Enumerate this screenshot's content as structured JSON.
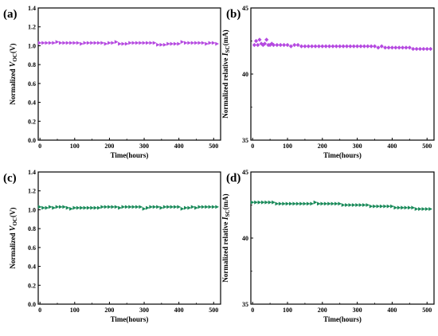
{
  "chart_data": [
    {
      "type": "scatter",
      "panel_label": "(a)",
      "xlabel": "Time(hours)",
      "ylabel": {
        "pre": "Normalized ",
        "var": "V",
        "sub": "OC",
        "post": "(V)"
      },
      "xlim": [
        -5,
        520
      ],
      "ylim": [
        0.0,
        1.4
      ],
      "xticks": [
        0,
        100,
        200,
        300,
        400,
        500
      ],
      "yticks": [
        "0.0",
        "0.2",
        "0.4",
        "0.6",
        "0.8",
        "1.0",
        "1.2",
        "1.4"
      ],
      "color": "#b54ae0",
      "marker": "triangle-right",
      "x": [
        0,
        10,
        20,
        30,
        40,
        50,
        60,
        70,
        80,
        90,
        100,
        110,
        120,
        130,
        140,
        150,
        160,
        170,
        180,
        190,
        200,
        210,
        220,
        230,
        240,
        250,
        260,
        270,
        280,
        290,
        300,
        310,
        320,
        330,
        340,
        350,
        360,
        370,
        380,
        390,
        400,
        410,
        420,
        430,
        440,
        450,
        460,
        470,
        480,
        490,
        500,
        510
      ],
      "y": [
        1.03,
        1.03,
        1.03,
        1.03,
        1.03,
        1.04,
        1.03,
        1.03,
        1.03,
        1.03,
        1.03,
        1.03,
        1.02,
        1.03,
        1.03,
        1.03,
        1.03,
        1.03,
        1.03,
        1.02,
        1.03,
        1.03,
        1.04,
        1.02,
        1.02,
        1.02,
        1.03,
        1.03,
        1.03,
        1.03,
        1.03,
        1.03,
        1.03,
        1.03,
        1.01,
        1.01,
        1.01,
        1.02,
        1.02,
        1.02,
        1.02,
        1.04,
        1.03,
        1.03,
        1.03,
        1.03,
        1.03,
        1.03,
        1.02,
        1.03,
        1.03,
        1.02
      ]
    },
    {
      "type": "scatter",
      "panel_label": "(b)",
      "xlabel": "Time(hours)",
      "ylabel": {
        "pre": "Normalized relative ",
        "var": "I",
        "sub": "SC",
        "post": "(mA)"
      },
      "xlim": [
        -5,
        520
      ],
      "ylim": [
        35,
        45
      ],
      "xticks": [
        0,
        100,
        200,
        300,
        400,
        500
      ],
      "yticks": [
        "35",
        "40",
        "45"
      ],
      "color": "#b54ae0",
      "marker": "diamond",
      "x": [
        5,
        10,
        15,
        20,
        25,
        30,
        35,
        40,
        45,
        50,
        55,
        60,
        70,
        80,
        90,
        100,
        110,
        120,
        130,
        140,
        150,
        160,
        170,
        180,
        190,
        200,
        210,
        220,
        230,
        240,
        250,
        260,
        270,
        280,
        290,
        300,
        310,
        320,
        330,
        340,
        350,
        360,
        370,
        380,
        390,
        400,
        410,
        420,
        430,
        440,
        450,
        460,
        470,
        480,
        490,
        500,
        510
      ],
      "y": [
        42.2,
        42.5,
        42.2,
        42.6,
        42.3,
        42.2,
        42.3,
        42.6,
        42.2,
        42.2,
        42.3,
        42.2,
        42.2,
        42.2,
        42.2,
        42.2,
        42.1,
        42.2,
        42.2,
        42.1,
        42.1,
        42.1,
        42.1,
        42.1,
        42.1,
        42.1,
        42.1,
        42.1,
        42.1,
        42.1,
        42.1,
        42.1,
        42.1,
        42.1,
        42.1,
        42.1,
        42.1,
        42.1,
        42.1,
        42.1,
        42.1,
        42.0,
        42.1,
        42.0,
        42.0,
        42.0,
        42.0,
        42.0,
        42.0,
        42.0,
        42.0,
        41.9,
        41.9,
        41.9,
        41.9,
        41.9,
        41.9
      ]
    },
    {
      "type": "scatter",
      "panel_label": "(c)",
      "xlabel": "Time(hours)",
      "ylabel": {
        "pre": "Normalized ",
        "var": "V",
        "sub": "OC",
        "post": "(V)"
      },
      "xlim": [
        -5,
        520
      ],
      "ylim": [
        0.0,
        1.4
      ],
      "xticks": [
        0,
        100,
        200,
        300,
        400,
        500
      ],
      "yticks": [
        "0.0",
        "0.2",
        "0.4",
        "0.6",
        "0.8",
        "1.0",
        "1.2",
        "1.4"
      ],
      "color": "#1a8a5a",
      "marker": "triangle-right",
      "x": [
        0,
        10,
        20,
        30,
        40,
        50,
        60,
        70,
        80,
        90,
        100,
        110,
        120,
        130,
        140,
        150,
        160,
        170,
        180,
        190,
        200,
        210,
        220,
        230,
        240,
        250,
        260,
        270,
        280,
        290,
        300,
        310,
        320,
        330,
        340,
        350,
        360,
        370,
        380,
        390,
        400,
        410,
        420,
        430,
        440,
        450,
        460,
        470,
        480,
        490,
        500,
        510
      ],
      "y": [
        1.03,
        1.02,
        1.02,
        1.03,
        1.02,
        1.03,
        1.03,
        1.03,
        1.02,
        1.01,
        1.02,
        1.02,
        1.02,
        1.02,
        1.02,
        1.02,
        1.02,
        1.02,
        1.03,
        1.03,
        1.03,
        1.03,
        1.03,
        1.02,
        1.03,
        1.03,
        1.03,
        1.03,
        1.03,
        1.03,
        1.01,
        1.02,
        1.03,
        1.03,
        1.03,
        1.02,
        1.03,
        1.03,
        1.03,
        1.03,
        1.03,
        1.01,
        1.02,
        1.02,
        1.03,
        1.02,
        1.03,
        1.03,
        1.03,
        1.03,
        1.03,
        1.03
      ]
    },
    {
      "type": "scatter",
      "panel_label": "(d)",
      "xlabel": "Time(hours)",
      "ylabel": {
        "pre": "Normalized relative ",
        "var": "I",
        "sub": "SC",
        "post": "(mA)"
      },
      "xlim": [
        -5,
        520
      ],
      "ylim": [
        35,
        45
      ],
      "xticks": [
        0,
        100,
        200,
        300,
        400,
        500
      ],
      "yticks": [
        "35",
        "40",
        "45"
      ],
      "color": "#1a8a5a",
      "marker": "triangle-right",
      "x": [
        0,
        10,
        20,
        30,
        40,
        50,
        60,
        70,
        80,
        90,
        100,
        110,
        120,
        130,
        140,
        150,
        160,
        170,
        180,
        190,
        200,
        210,
        220,
        230,
        240,
        250,
        260,
        270,
        280,
        290,
        300,
        310,
        320,
        330,
        340,
        350,
        360,
        370,
        380,
        390,
        400,
        410,
        420,
        430,
        440,
        450,
        460,
        470,
        480,
        490,
        500,
        510
      ],
      "y": [
        42.7,
        42.7,
        42.7,
        42.7,
        42.7,
        42.7,
        42.7,
        42.6,
        42.6,
        42.6,
        42.6,
        42.6,
        42.6,
        42.6,
        42.6,
        42.6,
        42.6,
        42.6,
        42.7,
        42.6,
        42.6,
        42.6,
        42.6,
        42.6,
        42.6,
        42.6,
        42.5,
        42.5,
        42.5,
        42.5,
        42.5,
        42.5,
        42.5,
        42.5,
        42.4,
        42.4,
        42.4,
        42.4,
        42.4,
        42.4,
        42.4,
        42.3,
        42.3,
        42.3,
        42.3,
        42.3,
        42.3,
        42.2,
        42.2,
        42.2,
        42.2,
        42.2
      ]
    }
  ]
}
